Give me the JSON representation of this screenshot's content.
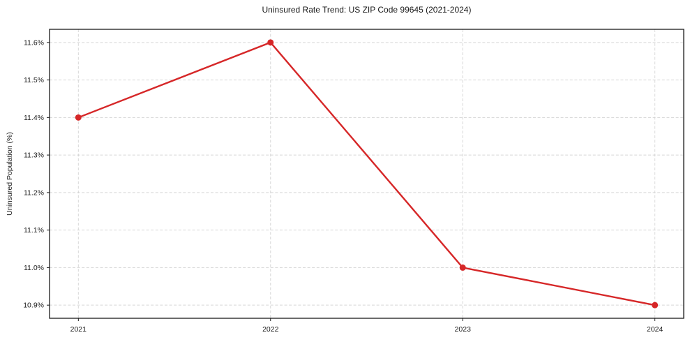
{
  "chart_data": {
    "type": "line",
    "title": "Uninsured Rate Trend: US ZIP Code 99645 (2021-2024)",
    "xlabel": "",
    "ylabel": "Uninsured Population (%)",
    "x": [
      2021,
      2022,
      2023,
      2024
    ],
    "values": [
      11.4,
      11.6,
      11.0,
      10.9
    ],
    "xtick_labels": [
      "2021",
      "2022",
      "2023",
      "2024"
    ],
    "yticks": [
      10.9,
      11.0,
      11.1,
      11.2,
      11.3,
      11.4,
      11.5,
      11.6
    ],
    "ytick_labels": [
      "10.9%",
      "11.0%",
      "11.1%",
      "11.2%",
      "11.3%",
      "11.4%",
      "11.5%",
      "11.6%"
    ],
    "xlim": [
      2020.85,
      2024.15
    ],
    "ylim": [
      10.865,
      11.635
    ],
    "grid": true,
    "grid_style": "dashed",
    "legend_position": "none",
    "line_color": "#d62728",
    "marker": "circle",
    "grid_color": "#cccccc",
    "frame_color": "#1a1a1a",
    "text_color": "#1a1a1a",
    "background_color": "#ffffff"
  }
}
